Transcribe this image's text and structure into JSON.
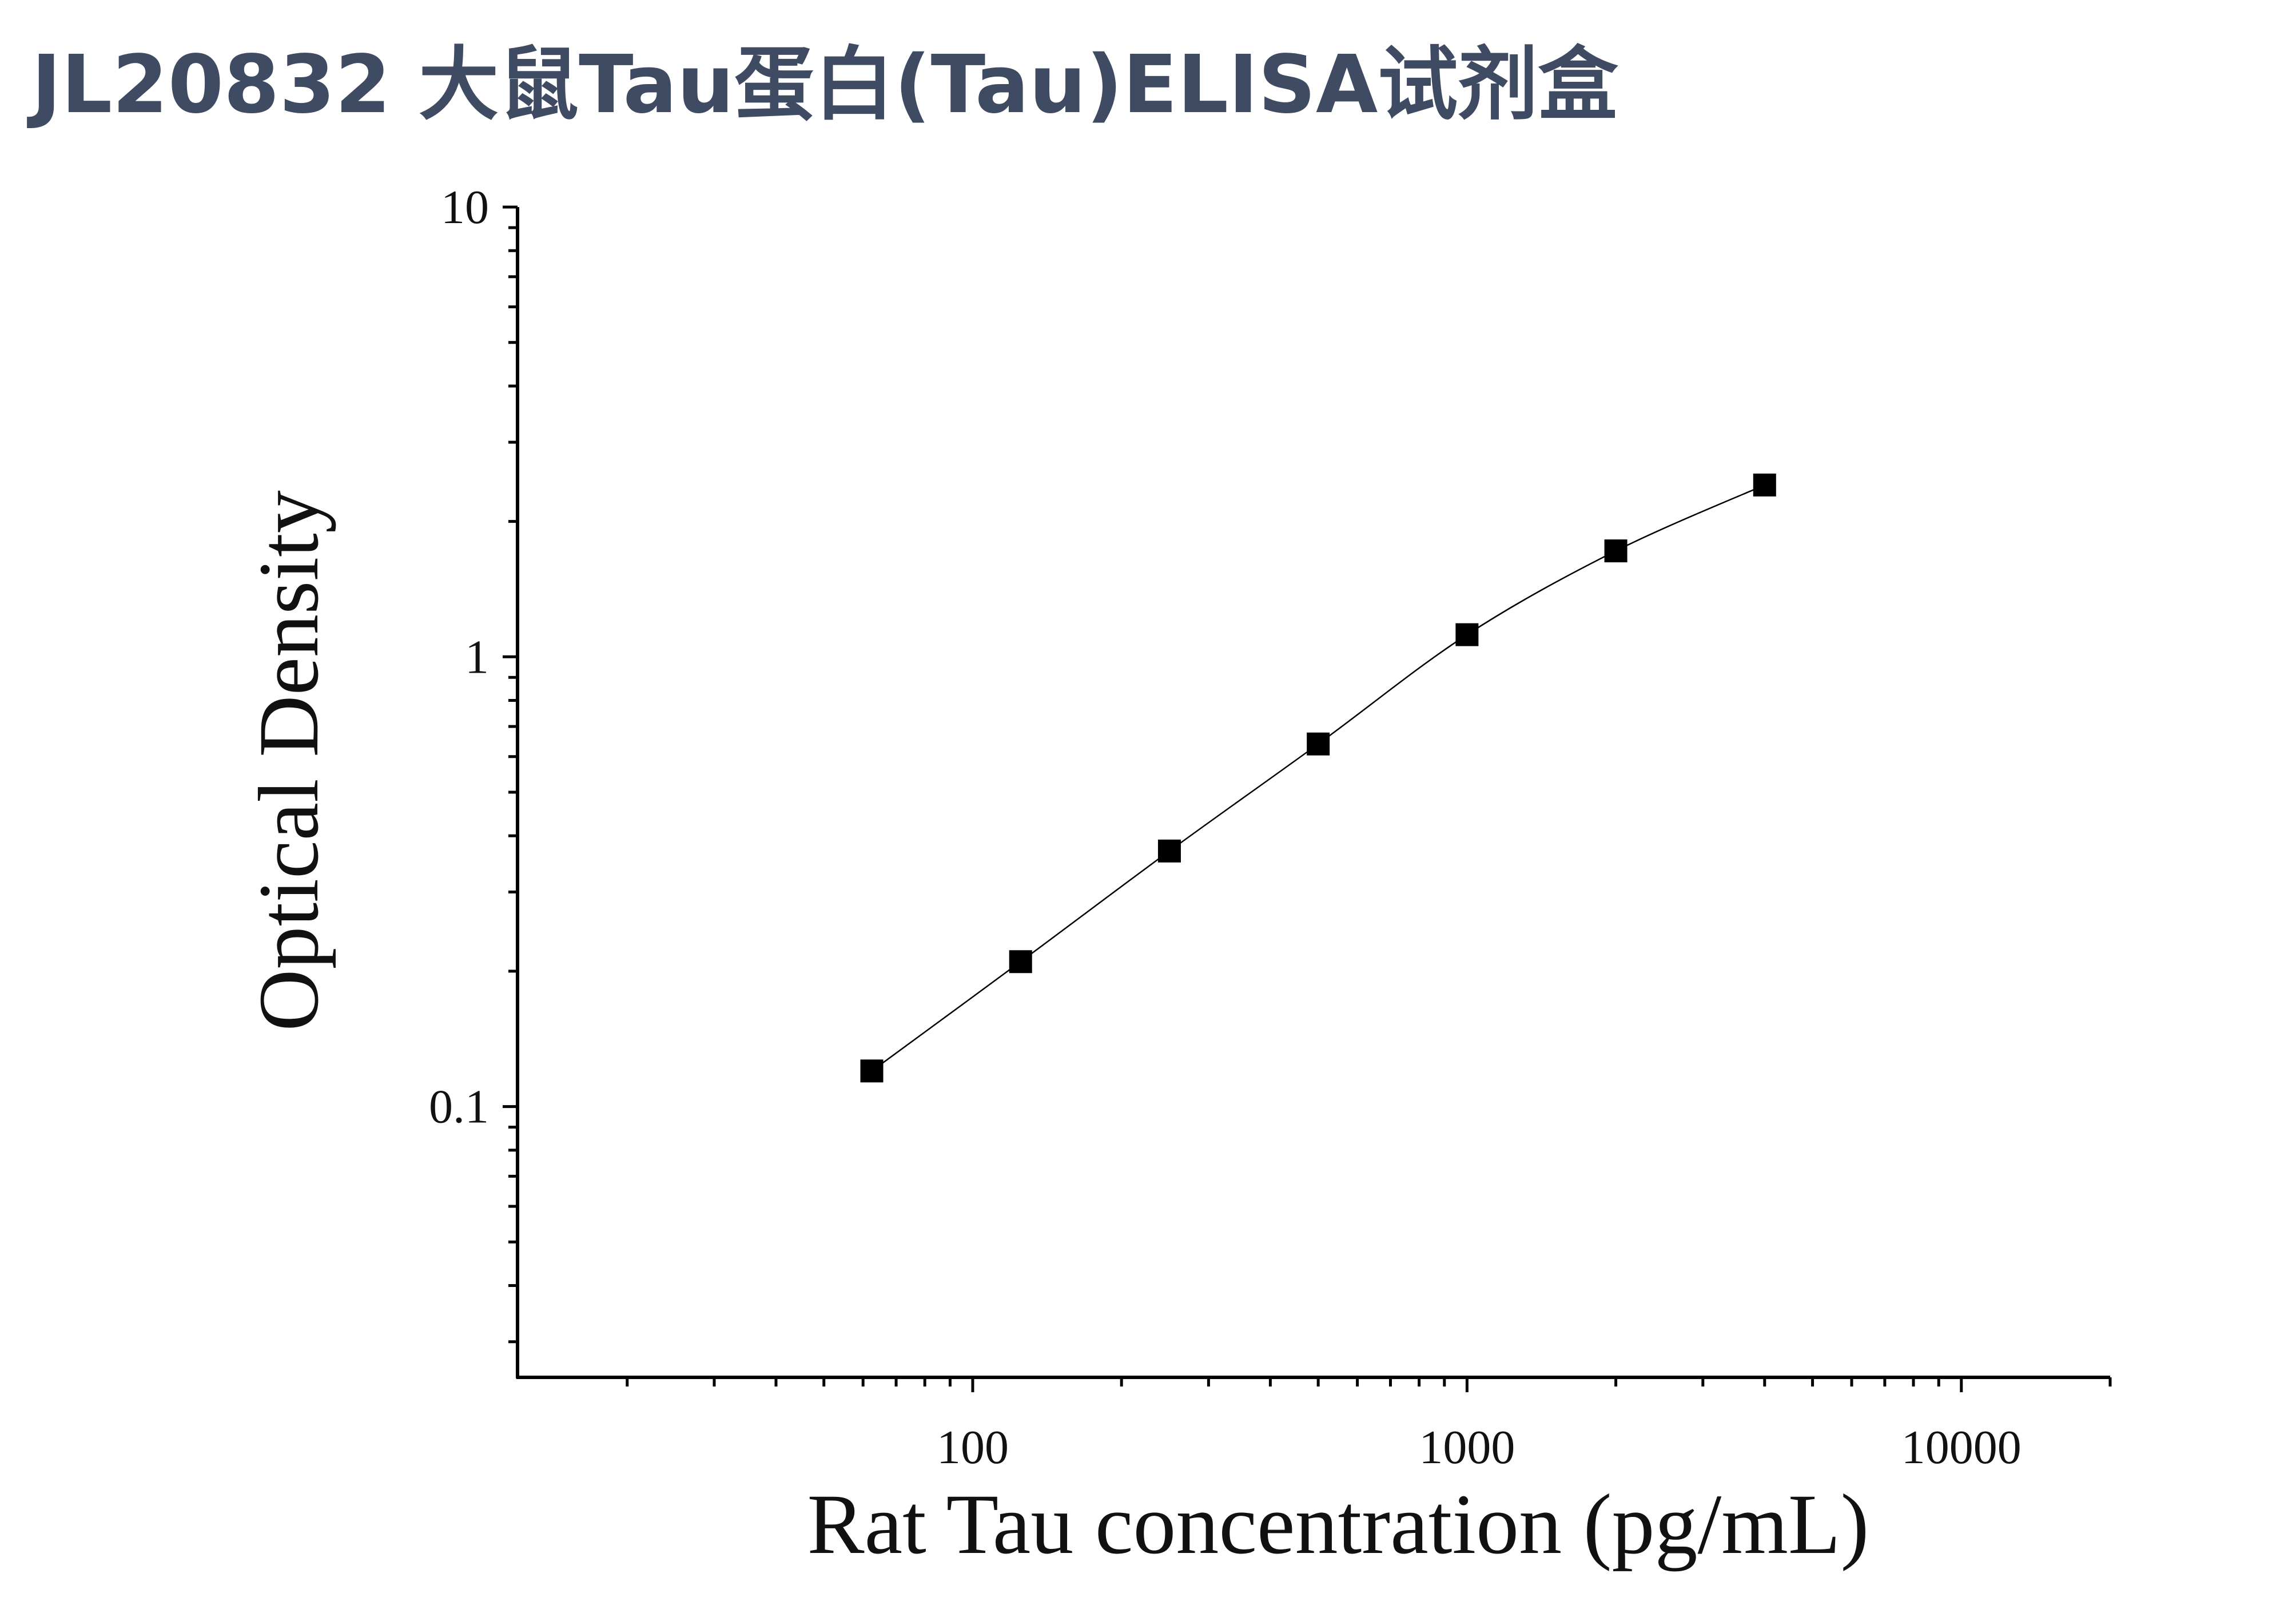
{
  "page_title": "JL20832 大鼠Tau蛋白(Tau)ELISA试剂盒",
  "chart_data": {
    "type": "scatter",
    "title": "",
    "xlabel": "Rat Tau concentration (pg/mL)",
    "ylabel": "Optical Density",
    "xscale": "log",
    "yscale": "log",
    "xlim": [
      12,
      20000
    ],
    "ylim": [
      0.025,
      10
    ],
    "x_ticks": [
      100,
      1000,
      10000
    ],
    "x_tick_labels": [
      "100",
      "1000",
      "10000"
    ],
    "y_ticks": [
      0.1,
      1,
      10
    ],
    "y_tick_labels": [
      "0.1",
      "1",
      "10"
    ],
    "grid": false,
    "series": [
      {
        "marker": "square",
        "fit_line": true,
        "x": [
          62.5,
          125,
          250,
          500,
          1000,
          2000,
          4000
        ],
        "y": [
          0.12,
          0.21,
          0.37,
          0.64,
          1.12,
          1.72,
          2.41
        ]
      }
    ],
    "colors": {
      "markers": "#000000",
      "line": "#000000",
      "axes": "#000000"
    }
  }
}
